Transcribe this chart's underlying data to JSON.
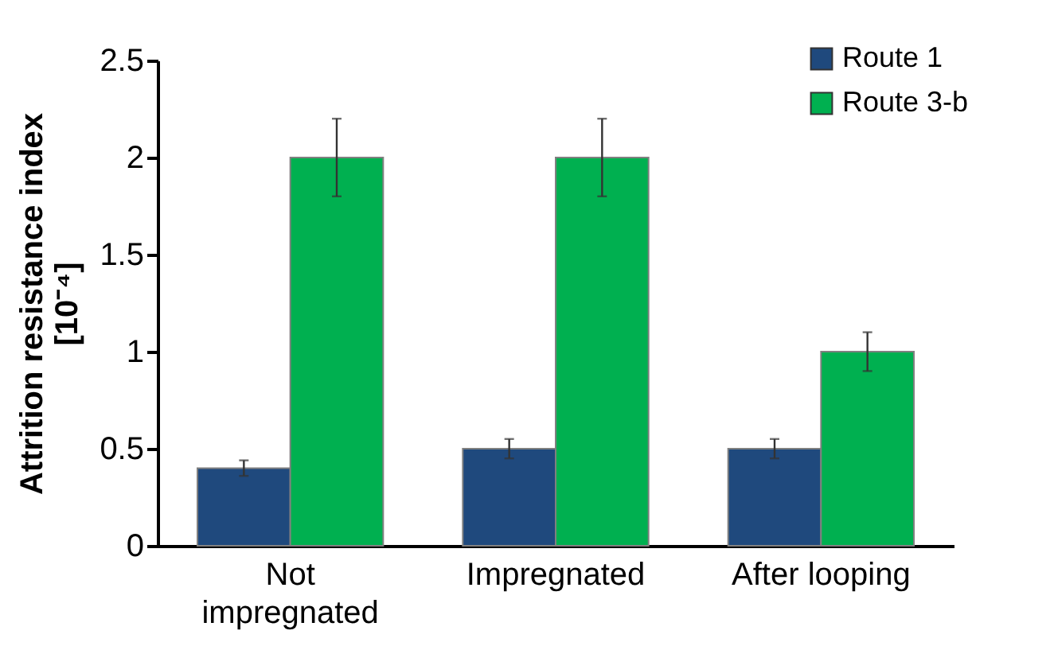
{
  "chart_data": {
    "type": "bar",
    "ylabel": "Attrition resistance index [10⁻⁴]",
    "categories": [
      "Not impregnated",
      "Impregnated",
      "After looping"
    ],
    "series": [
      {
        "name": "Route 1",
        "color": "#1f497d",
        "values": [
          0.4,
          0.5,
          0.5
        ],
        "errors": [
          0.04,
          0.05,
          0.05
        ]
      },
      {
        "name": "Route 3-b",
        "color": "#00b050",
        "values": [
          2,
          2,
          1
        ],
        "errors": [
          0.2,
          0.2,
          0.1
        ]
      }
    ],
    "ylim": [
      0,
      2.5
    ],
    "yticks": [
      0,
      0.5,
      1,
      1.5,
      2,
      2.5
    ],
    "grid": false,
    "legend": "top right"
  }
}
